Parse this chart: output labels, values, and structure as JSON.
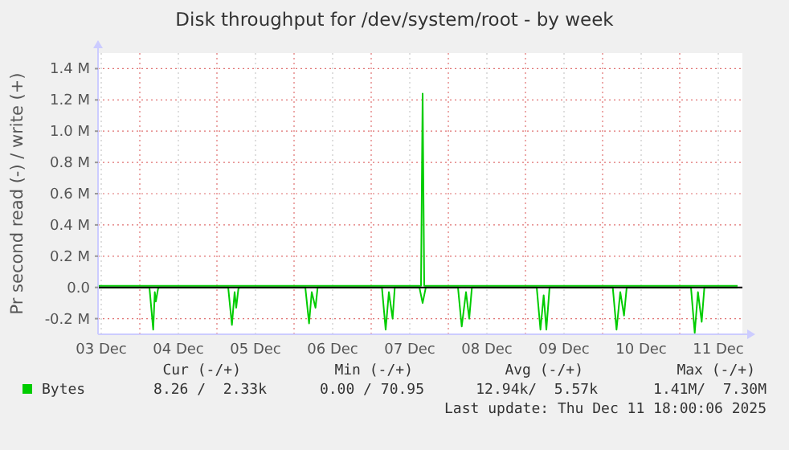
{
  "chart_data": {
    "type": "line",
    "title": "Disk throughput for /dev/system/root - by week",
    "ylabel": "Pr second read (-) / write (+)",
    "xlim": [
      "2025-12-03T11:00",
      "2025-12-11T19:30"
    ],
    "xticks": [
      {
        "value": "2025-12-03T12:00",
        "label": "03 Dec"
      },
      {
        "value": "2025-12-04T00:00",
        "label": null
      },
      {
        "value": "2025-12-04T12:00",
        "label": "04 Dec"
      },
      {
        "value": "2025-12-05T00:00",
        "label": null
      },
      {
        "value": "2025-12-05T12:00",
        "label": "05 Dec"
      },
      {
        "value": "2025-12-06T00:00",
        "label": null
      },
      {
        "value": "2025-12-06T12:00",
        "label": "06 Dec"
      },
      {
        "value": "2025-12-07T00:00",
        "label": null
      },
      {
        "value": "2025-12-07T12:00",
        "label": "07 Dec"
      },
      {
        "value": "2025-12-08T00:00",
        "label": null
      },
      {
        "value": "2025-12-08T12:00",
        "label": "08 Dec"
      },
      {
        "value": "2025-12-09T00:00",
        "label": null
      },
      {
        "value": "2025-12-09T12:00",
        "label": "09 Dec"
      },
      {
        "value": "2025-12-10T00:00",
        "label": null
      },
      {
        "value": "2025-12-10T12:00",
        "label": "10 Dec"
      },
      {
        "value": "2025-12-11T00:00",
        "label": null
      },
      {
        "value": "2025-12-11T12:00",
        "label": "11 Dec"
      }
    ],
    "ylim": [
      -0.3,
      1.5
    ],
    "yticks": [
      {
        "value": -0.2,
        "label": "-0.2 M"
      },
      {
        "value": 0,
        "label": "0.0"
      },
      {
        "value": 0.2,
        "label": "0.2 M"
      },
      {
        "value": 0.4,
        "label": "0.4 M"
      },
      {
        "value": 0.6,
        "label": "0.6 M"
      },
      {
        "value": 0.8,
        "label": "0.8 M"
      },
      {
        "value": 1.0,
        "label": "1.0 M"
      },
      {
        "value": 1.2,
        "label": "1.2 M"
      },
      {
        "value": 1.4,
        "label": "1.4 M"
      }
    ],
    "grid": true,
    "legend": "bottom left",
    "line_style": "solid",
    "ref_lines": [
      {
        "axis": "y",
        "value": 0,
        "color": "#000000"
      }
    ],
    "series": [
      {
        "name": "Bytes",
        "color": "#00cc00",
        "x": [
          "2025-12-03T11:00",
          "2025-12-07T15:30",
          "2025-12-07T16:00",
          "2025-12-07T16:30",
          "2025-12-11T18:00"
        ],
        "values": [
          0.01,
          0.01,
          1.24,
          0.01,
          0.01
        ]
      },
      {
        "color": "#00cc00",
        "x": [
          "2025-12-03T11:00",
          "2025-12-04T03:00",
          "2025-12-04T04:10",
          "2025-12-04T04:40",
          "2025-12-04T05:00",
          "2025-12-04T05:40",
          "2025-12-04T06:00",
          "2025-12-05T03:30",
          "2025-12-05T04:40",
          "2025-12-05T05:30",
          "2025-12-05T06:00",
          "2025-12-05T06:40",
          "2025-12-05T07:00",
          "2025-12-06T03:30",
          "2025-12-06T04:40",
          "2025-12-06T05:30",
          "2025-12-06T06:40",
          "2025-12-06T07:20",
          "2025-12-07T03:20",
          "2025-12-07T04:30",
          "2025-12-07T05:30",
          "2025-12-07T06:40",
          "2025-12-07T07:20",
          "2025-12-07T15:00",
          "2025-12-07T16:00",
          "2025-12-07T17:00",
          "2025-12-08T03:00",
          "2025-12-08T04:10",
          "2025-12-08T05:30",
          "2025-12-08T06:30",
          "2025-12-08T07:20",
          "2025-12-09T03:30",
          "2025-12-09T04:40",
          "2025-12-09T05:40",
          "2025-12-09T06:30",
          "2025-12-09T07:30",
          "2025-12-10T03:10",
          "2025-12-10T04:20",
          "2025-12-10T05:30",
          "2025-12-10T06:40",
          "2025-12-10T07:30",
          "2025-12-11T03:30",
          "2025-12-11T04:40",
          "2025-12-11T05:40",
          "2025-12-11T06:50",
          "2025-12-11T07:40",
          "2025-12-11T18:00"
        ],
        "values": [
          0,
          0,
          -0.27,
          -0.03,
          -0.09,
          -0.01,
          0,
          0,
          -0.24,
          -0.03,
          -0.13,
          -0.01,
          0,
          0,
          -0.23,
          -0.03,
          -0.13,
          0,
          0,
          -0.27,
          -0.03,
          -0.2,
          0,
          0,
          -0.1,
          0,
          0,
          -0.25,
          -0.03,
          -0.2,
          0,
          0,
          -0.27,
          -0.05,
          -0.27,
          0,
          0,
          -0.27,
          -0.03,
          -0.18,
          0,
          0,
          -0.29,
          -0.03,
          -0.22,
          0,
          0
        ]
      }
    ],
    "annotations": [
      "Cur (-/+)",
      "Min (-/+)",
      "Avg (-/+)",
      "Max (-/+)",
      "8.26 /  2.33k",
      "0.00 / 70.95",
      "12.94k/  5.57k",
      "1.41M/  7.30M",
      "Last update: Thu Dec 11 18:00:06 2025"
    ]
  }
}
